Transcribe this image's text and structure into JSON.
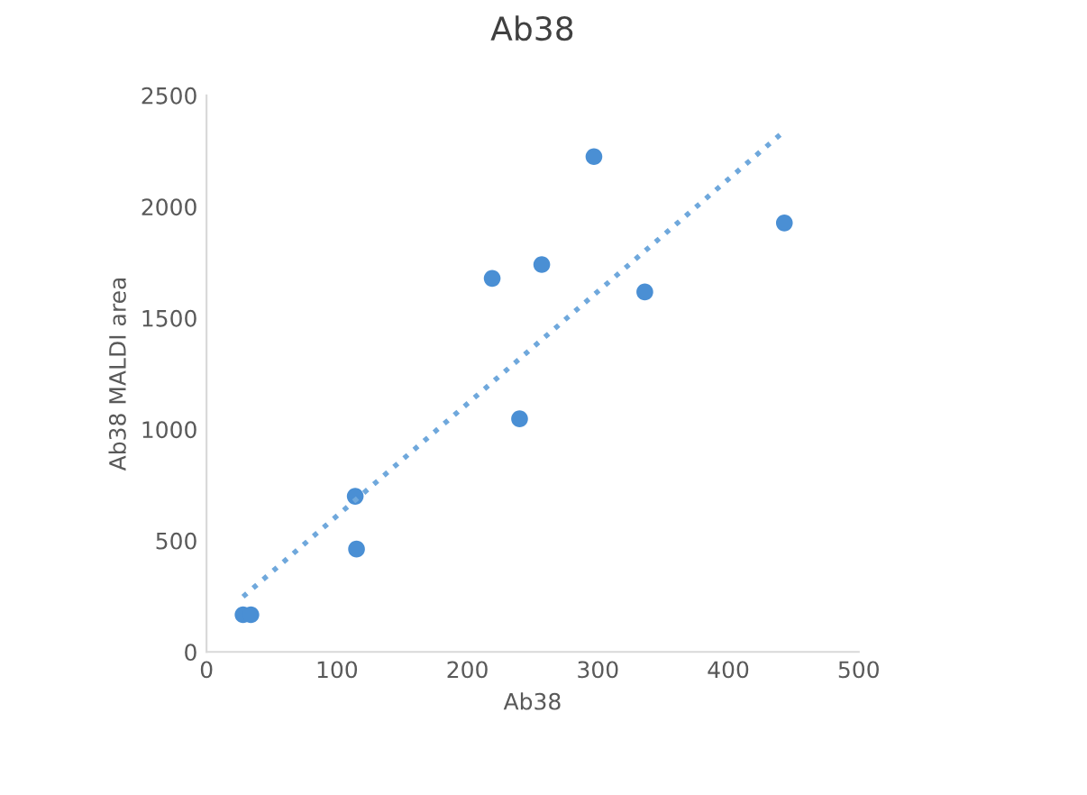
{
  "chart_data": {
    "type": "scatter",
    "title": "Ab38",
    "xlabel": "Ab38",
    "ylabel": "Ab38 MALDI area",
    "xlim": [
      0,
      500
    ],
    "xticks": [
      0,
      100,
      200,
      300,
      400,
      500
    ],
    "ylim": [
      0,
      2500
    ],
    "yticks": [
      0,
      500,
      1000,
      1500,
      2000,
      2500
    ],
    "grid": false,
    "legend": false,
    "marker": "circle",
    "series": [
      {
        "color": "#4a8fd4",
        "x": [
          28,
          34,
          114,
          115,
          219,
          240,
          257,
          297,
          336,
          443
        ],
        "values": [
          167,
          167,
          699,
          462,
          1678,
          1047,
          1740,
          2225,
          1617,
          1927
        ]
      },
      {
        "type": "line",
        "color": "#6fa8dc",
        "line_style": "dotted",
        "marker": "none",
        "x": [
          28,
          443
        ],
        "values": [
          248,
          2340
        ]
      }
    ]
  }
}
